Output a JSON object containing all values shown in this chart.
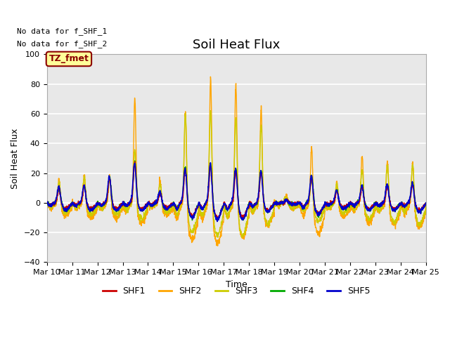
{
  "title": "Soil Heat Flux",
  "xlabel": "Time",
  "ylabel": "Soil Heat Flux",
  "ylim": [
    -40,
    100
  ],
  "xlim": [
    0,
    15
  ],
  "x_tick_labels": [
    "Mar 10",
    "Mar 11",
    "Mar 12",
    "Mar 13",
    "Mar 14",
    "Mar 15",
    "Mar 16",
    "Mar 17",
    "Mar 18",
    "Mar 19",
    "Mar 20",
    "Mar 21",
    "Mar 22",
    "Mar 23",
    "Mar 24",
    "Mar 25"
  ],
  "yticks": [
    -40,
    -20,
    0,
    20,
    40,
    60,
    80,
    100
  ],
  "plot_bg_color": "#e8e8e8",
  "no_data_text": [
    "No data for f_SHF_1",
    "No data for f_SHF_2"
  ],
  "legend_label_box": "TZ_fmet",
  "legend_box_color": "#ffff99",
  "legend_box_border": "#8b0000",
  "series_colors": {
    "SHF1": "#cc0000",
    "SHF2": "#ffa500",
    "SHF3": "#cccc00",
    "SHF4": "#00aa00",
    "SHF5": "#0000cc"
  },
  "title_fontsize": 13,
  "axis_label_fontsize": 9,
  "tick_fontsize": 8,
  "shf2_day_peaks": [
    18,
    22,
    22,
    75,
    18,
    70,
    93,
    87,
    68,
    5,
    44,
    17,
    36,
    33,
    32
  ],
  "shf3_day_peaks": [
    16,
    19,
    19,
    38,
    14,
    65,
    68,
    62,
    55,
    4,
    20,
    14,
    25,
    28,
    29
  ],
  "shf4_day_peaks": [
    11,
    12,
    18,
    28,
    8,
    25,
    27,
    24,
    22,
    2,
    19,
    9,
    12,
    13,
    14
  ],
  "shf5_day_peaks": [
    11,
    12,
    18,
    27,
    8,
    24,
    27,
    24,
    22,
    2,
    19,
    9,
    12,
    13,
    14
  ],
  "shf1_day_peaks": [
    10,
    11,
    17,
    27,
    7,
    23,
    26,
    22,
    21,
    2,
    18,
    8,
    11,
    12,
    13
  ],
  "shf2_neg": [
    8,
    10,
    10,
    14,
    8,
    25,
    27,
    23,
    15,
    3,
    21,
    9,
    13,
    15,
    16
  ],
  "shf3_neg": [
    6,
    8,
    8,
    11,
    6,
    20,
    22,
    22,
    14,
    3,
    12,
    7,
    11,
    13,
    14
  ],
  "shf4_neg": [
    5,
    5,
    5,
    5,
    4,
    10,
    11,
    11,
    6,
    1,
    8,
    4,
    5,
    5,
    6
  ],
  "shf5_neg": [
    5,
    5,
    5,
    5,
    4,
    10,
    11,
    11,
    6,
    1,
    8,
    4,
    5,
    5,
    6
  ],
  "shf1_neg": [
    4,
    4,
    4,
    4,
    3,
    9,
    10,
    10,
    5,
    1,
    7,
    3,
    4,
    4,
    5
  ]
}
